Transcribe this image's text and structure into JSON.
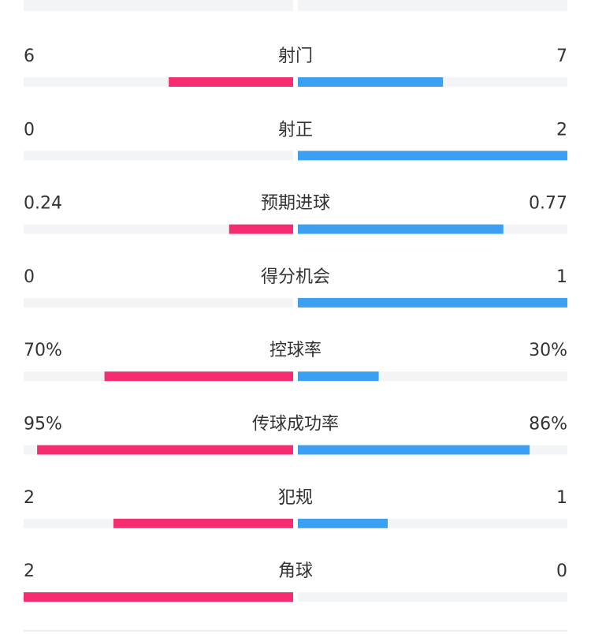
{
  "chart_data": {
    "type": "butterfly",
    "categories": [
      "射门",
      "射正",
      "预期进球",
      "得分机会",
      "控球率",
      "传球成功率",
      "犯规",
      "角球"
    ],
    "series": [
      {
        "color": "#f52c70",
        "values": [
          6,
          0,
          0.24,
          0,
          70,
          95,
          2,
          2
        ],
        "value_labels": [
          "6",
          "0",
          "0.24",
          "0",
          "70%",
          "95%",
          "2",
          "2"
        ]
      },
      {
        "color": "#3b9ff2",
        "values": [
          7,
          2,
          0.77,
          1,
          30,
          86,
          1,
          0
        ],
        "value_labels": [
          "7",
          "2",
          "0.77",
          "1",
          "30%",
          "86%",
          "1",
          "0"
        ]
      }
    ]
  }
}
